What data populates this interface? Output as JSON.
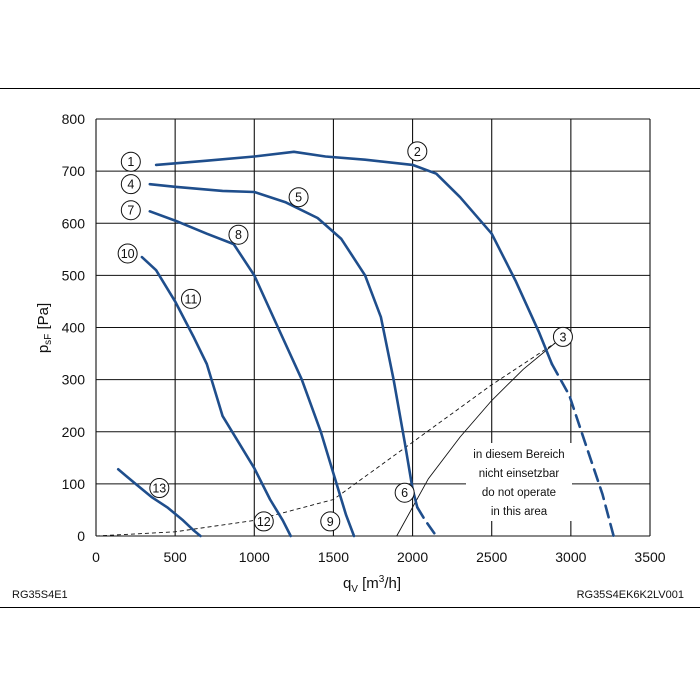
{
  "chart_data": {
    "type": "line",
    "xlabel": "q_V [m³/h]",
    "ylabel": "p_sF [Pa]",
    "xlim": [
      0,
      3500
    ],
    "ylim": [
      0,
      800
    ],
    "x_ticks": [
      0,
      500,
      1000,
      1500,
      2000,
      2500,
      3000,
      3500
    ],
    "y_ticks": [
      0,
      100,
      200,
      300,
      400,
      500,
      600,
      700,
      800
    ],
    "grid": true,
    "left_caption": "RG35S4E1",
    "right_caption": "RG35S4EK6K2LV001",
    "note_lines": [
      "in diesem Bereich",
      "nicht einsetzbar",
      "do not operate",
      "in this area"
    ],
    "curve_color": "#1f4e8c",
    "series": [
      {
        "values": [
          [
            380,
            712
          ],
          [
            700,
            720
          ],
          [
            1000,
            728
          ],
          [
            1250,
            737
          ],
          [
            1450,
            728
          ],
          [
            1700,
            722
          ],
          [
            2000,
            712
          ],
          [
            2150,
            695
          ],
          [
            2300,
            650
          ],
          [
            2500,
            580
          ],
          [
            2650,
            490
          ],
          [
            2800,
            390
          ],
          [
            2880,
            330
          ]
        ],
        "style": "solid"
      },
      {
        "values": [
          [
            2880,
            330
          ],
          [
            2990,
            270
          ],
          [
            3100,
            170
          ],
          [
            3200,
            80
          ],
          [
            3270,
            0
          ]
        ],
        "style": "dashed"
      },
      {
        "values": [
          [
            340,
            675
          ],
          [
            500,
            670
          ],
          [
            800,
            662
          ],
          [
            1000,
            660
          ],
          [
            1200,
            640
          ],
          [
            1400,
            610
          ],
          [
            1550,
            570
          ],
          [
            1700,
            500
          ],
          [
            1800,
            420
          ],
          [
            1880,
            300
          ],
          [
            1950,
            180
          ],
          [
            2000,
            90
          ],
          [
            2030,
            55
          ]
        ],
        "style": "solid"
      },
      {
        "values": [
          [
            2030,
            55
          ],
          [
            2080,
            30
          ],
          [
            2150,
            0
          ]
        ],
        "style": "dashed"
      },
      {
        "values": [
          [
            340,
            623
          ],
          [
            500,
            605
          ],
          [
            700,
            580
          ],
          [
            870,
            560
          ],
          [
            1000,
            500
          ],
          [
            1150,
            400
          ],
          [
            1300,
            300
          ],
          [
            1420,
            200
          ],
          [
            1500,
            120
          ],
          [
            1580,
            40
          ],
          [
            1630,
            0
          ]
        ],
        "style": "solid"
      },
      {
        "values": [
          [
            290,
            535
          ],
          [
            380,
            510
          ],
          [
            500,
            450
          ],
          [
            620,
            380
          ],
          [
            700,
            330
          ],
          [
            800,
            230
          ],
          [
            900,
            180
          ],
          [
            1000,
            130
          ],
          [
            1100,
            70
          ],
          [
            1180,
            30
          ],
          [
            1230,
            0
          ]
        ],
        "style": "solid"
      },
      {
        "values": [
          [
            140,
            128
          ],
          [
            250,
            100
          ],
          [
            350,
            75
          ],
          [
            450,
            55
          ],
          [
            550,
            30
          ],
          [
            620,
            10
          ],
          [
            660,
            0
          ]
        ],
        "style": "solid"
      }
    ],
    "system_curves": [
      {
        "values": [
          [
            0,
            0
          ],
          [
            500,
            8
          ],
          [
            1000,
            30
          ],
          [
            1500,
            70
          ],
          [
            2000,
            180
          ],
          [
            2500,
            290
          ],
          [
            2900,
            370
          ]
        ],
        "style": "dashed"
      },
      {
        "values": [
          [
            1900,
            0
          ],
          [
            2100,
            110
          ],
          [
            2300,
            190
          ],
          [
            2500,
            260
          ],
          [
            2700,
            320
          ],
          [
            2900,
            370
          ]
        ],
        "style": "solid"
      }
    ],
    "curve_markers": [
      {
        "label": "1",
        "x": 220,
        "y": 718
      },
      {
        "label": "2",
        "x": 2030,
        "y": 738
      },
      {
        "label": "3",
        "x": 2950,
        "y": 382
      },
      {
        "label": "4",
        "x": 220,
        "y": 675
      },
      {
        "label": "5",
        "x": 1280,
        "y": 650
      },
      {
        "label": "6",
        "x": 1950,
        "y": 83
      },
      {
        "label": "7",
        "x": 220,
        "y": 625
      },
      {
        "label": "8",
        "x": 900,
        "y": 578
      },
      {
        "label": "9",
        "x": 1480,
        "y": 28
      },
      {
        "label": "10",
        "x": 200,
        "y": 542
      },
      {
        "label": "11",
        "x": 600,
        "y": 455
      },
      {
        "label": "12",
        "x": 1060,
        "y": 28
      },
      {
        "label": "13",
        "x": 400,
        "y": 92
      }
    ]
  }
}
